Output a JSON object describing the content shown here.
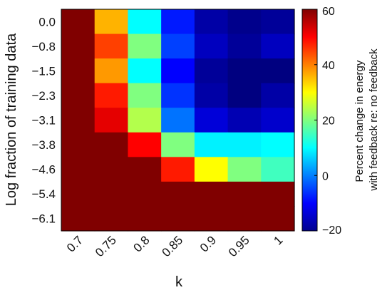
{
  "chart_data": {
    "type": "heatmap",
    "title": "",
    "xlabel": "k",
    "ylabel": "Log fraction of training data",
    "x_categories": [
      "0.7",
      "0.75",
      "0.8",
      "0.85",
      "0.9",
      "0.95",
      "1"
    ],
    "y_categories": [
      "0.0",
      "−0.8",
      "−1.5",
      "−2.3",
      "−3.1",
      "−3.8",
      "−4.6",
      "−5.4",
      "−6.1"
    ],
    "values": [
      [
        60,
        36,
        10,
        -8,
        -17,
        -19,
        -18
      ],
      [
        60,
        45,
        20,
        -5,
        -15,
        -18,
        -15
      ],
      [
        60,
        38,
        10,
        -10,
        -18,
        -21,
        -22
      ],
      [
        60,
        48,
        20,
        -6,
        -17,
        -20,
        -17
      ],
      [
        60,
        52,
        24,
        -1,
        -13,
        -16,
        -14
      ],
      [
        60,
        60,
        50,
        20,
        9,
        9,
        10
      ],
      [
        60,
        60,
        60,
        48,
        30,
        20,
        15
      ],
      [
        60,
        60,
        60,
        60,
        60,
        60,
        60
      ],
      [
        60,
        60,
        60,
        60,
        60,
        60,
        60
      ]
    ],
    "colorbar": {
      "title_lines": [
        "Percent change in energy",
        "with feedback re: no feedback"
      ],
      "ticks": [
        "−20",
        "0",
        "20",
        "40",
        "60"
      ],
      "tick_values": [
        -20,
        0,
        20,
        40,
        60
      ],
      "range": [
        -20,
        60
      ],
      "colormap": "jet"
    }
  }
}
